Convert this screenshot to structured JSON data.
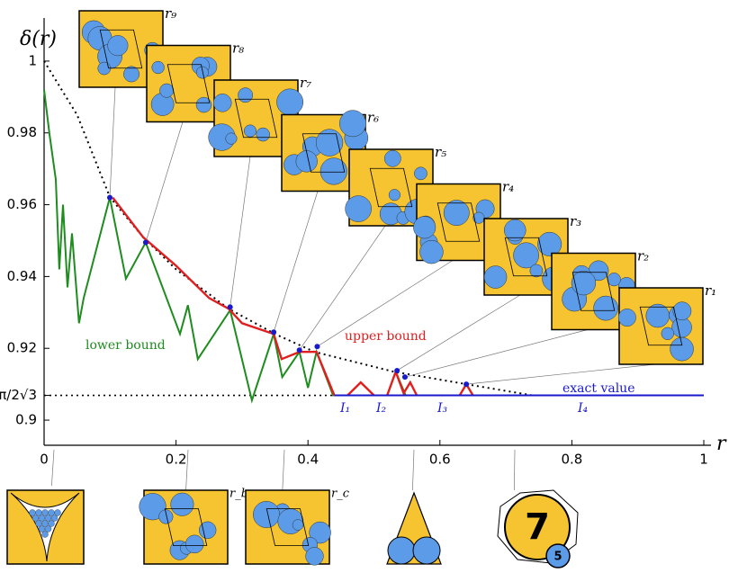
{
  "chart_data": {
    "type": "line",
    "y_label": "δ(r)",
    "x_label": "r",
    "xlim": [
      0,
      1
    ],
    "ylim": [
      0.893,
      1.012
    ],
    "xticks": [
      0,
      0.2,
      0.4,
      0.6,
      0.8,
      1
    ],
    "yticks": [
      0.9,
      0.92,
      0.94,
      0.96,
      0.98,
      1,
      {
        "value": 0.9069,
        "label": "π/2√3"
      }
    ],
    "series": [
      {
        "name": "lower bound",
        "color": "#1e8c1e",
        "x": [
          0,
          0.0082,
          0.0177,
          0.023,
          0.0286,
          0.0355,
          0.0423,
          0.053,
          0.06,
          0.0996,
          0.124,
          0.154,
          0.206,
          0.218,
          0.233,
          0.282,
          0.315,
          0.348,
          0.361,
          0.387,
          0.4,
          0.413,
          0.438,
          0.45,
          null,
          0.52,
          0.533,
          0.548,
          0.56
        ],
        "values": [
          0.992,
          0.9796,
          0.967,
          0.942,
          0.96,
          0.937,
          0.952,
          0.927,
          0.934,
          0.962,
          0.9394,
          0.9495,
          0.924,
          0.932,
          0.917,
          0.9306,
          0.9055,
          0.924,
          0.912,
          0.919,
          0.909,
          0.919,
          0.9069,
          0.9069,
          null,
          0.9069,
          0.9135,
          0.9069,
          0.9069
        ]
      },
      {
        "name": "upper bound",
        "color": "#e02020",
        "x": [
          0.104,
          0.15,
          0.2,
          0.25,
          0.28,
          0.3,
          0.348,
          0.36,
          0.387,
          0.413,
          0.44,
          null,
          0.46,
          0.48,
          0.5,
          null,
          0.52,
          0.533,
          0.545,
          0.555,
          0.565,
          null,
          0.63,
          0.64,
          0.65
        ],
        "values": [
          0.962,
          0.951,
          0.943,
          0.934,
          0.931,
          0.927,
          0.924,
          0.917,
          0.919,
          0.919,
          0.9069,
          null,
          0.9069,
          0.9105,
          0.9069,
          null,
          0.9069,
          0.9135,
          0.9075,
          0.9105,
          0.9069,
          null,
          0.9069,
          0.91,
          0.9069
        ]
      },
      {
        "name": "exact value",
        "color": "#1a1acc",
        "x": [
          0.44,
          1
        ],
        "values": [
          0.9069,
          0.9069
        ]
      }
    ],
    "envelope": {
      "color": "#000000",
      "x": [
        0,
        0.05,
        0.1,
        0.15,
        0.2,
        0.28,
        0.35,
        0.41,
        0.53,
        0.64,
        0.74
      ],
      "values": [
        1,
        0.985,
        0.962,
        0.951,
        0.942,
        0.931,
        0.924,
        0.919,
        0.9135,
        0.91,
        0.9069
      ]
    },
    "peaks": {
      "color": "#1a1acc",
      "labels": [
        "r₉",
        "r₈",
        "r₇",
        "r₆",
        "r₅",
        "r₄",
        "r₃",
        "r₂",
        "r₁"
      ],
      "x": [
        0.0996,
        0.154,
        0.282,
        0.348,
        0.387,
        0.414,
        0.535,
        0.547,
        0.64
      ],
      "values": [
        0.962,
        0.9495,
        0.9315,
        0.9245,
        0.9195,
        0.9205,
        0.9138,
        0.912,
        0.91
      ]
    },
    "interval_labels": [
      "I₁",
      "I₂",
      "I₃",
      "I₄"
    ],
    "bottom_labels": [
      "r_b",
      "r_c",
      "7",
      "5"
    ]
  }
}
